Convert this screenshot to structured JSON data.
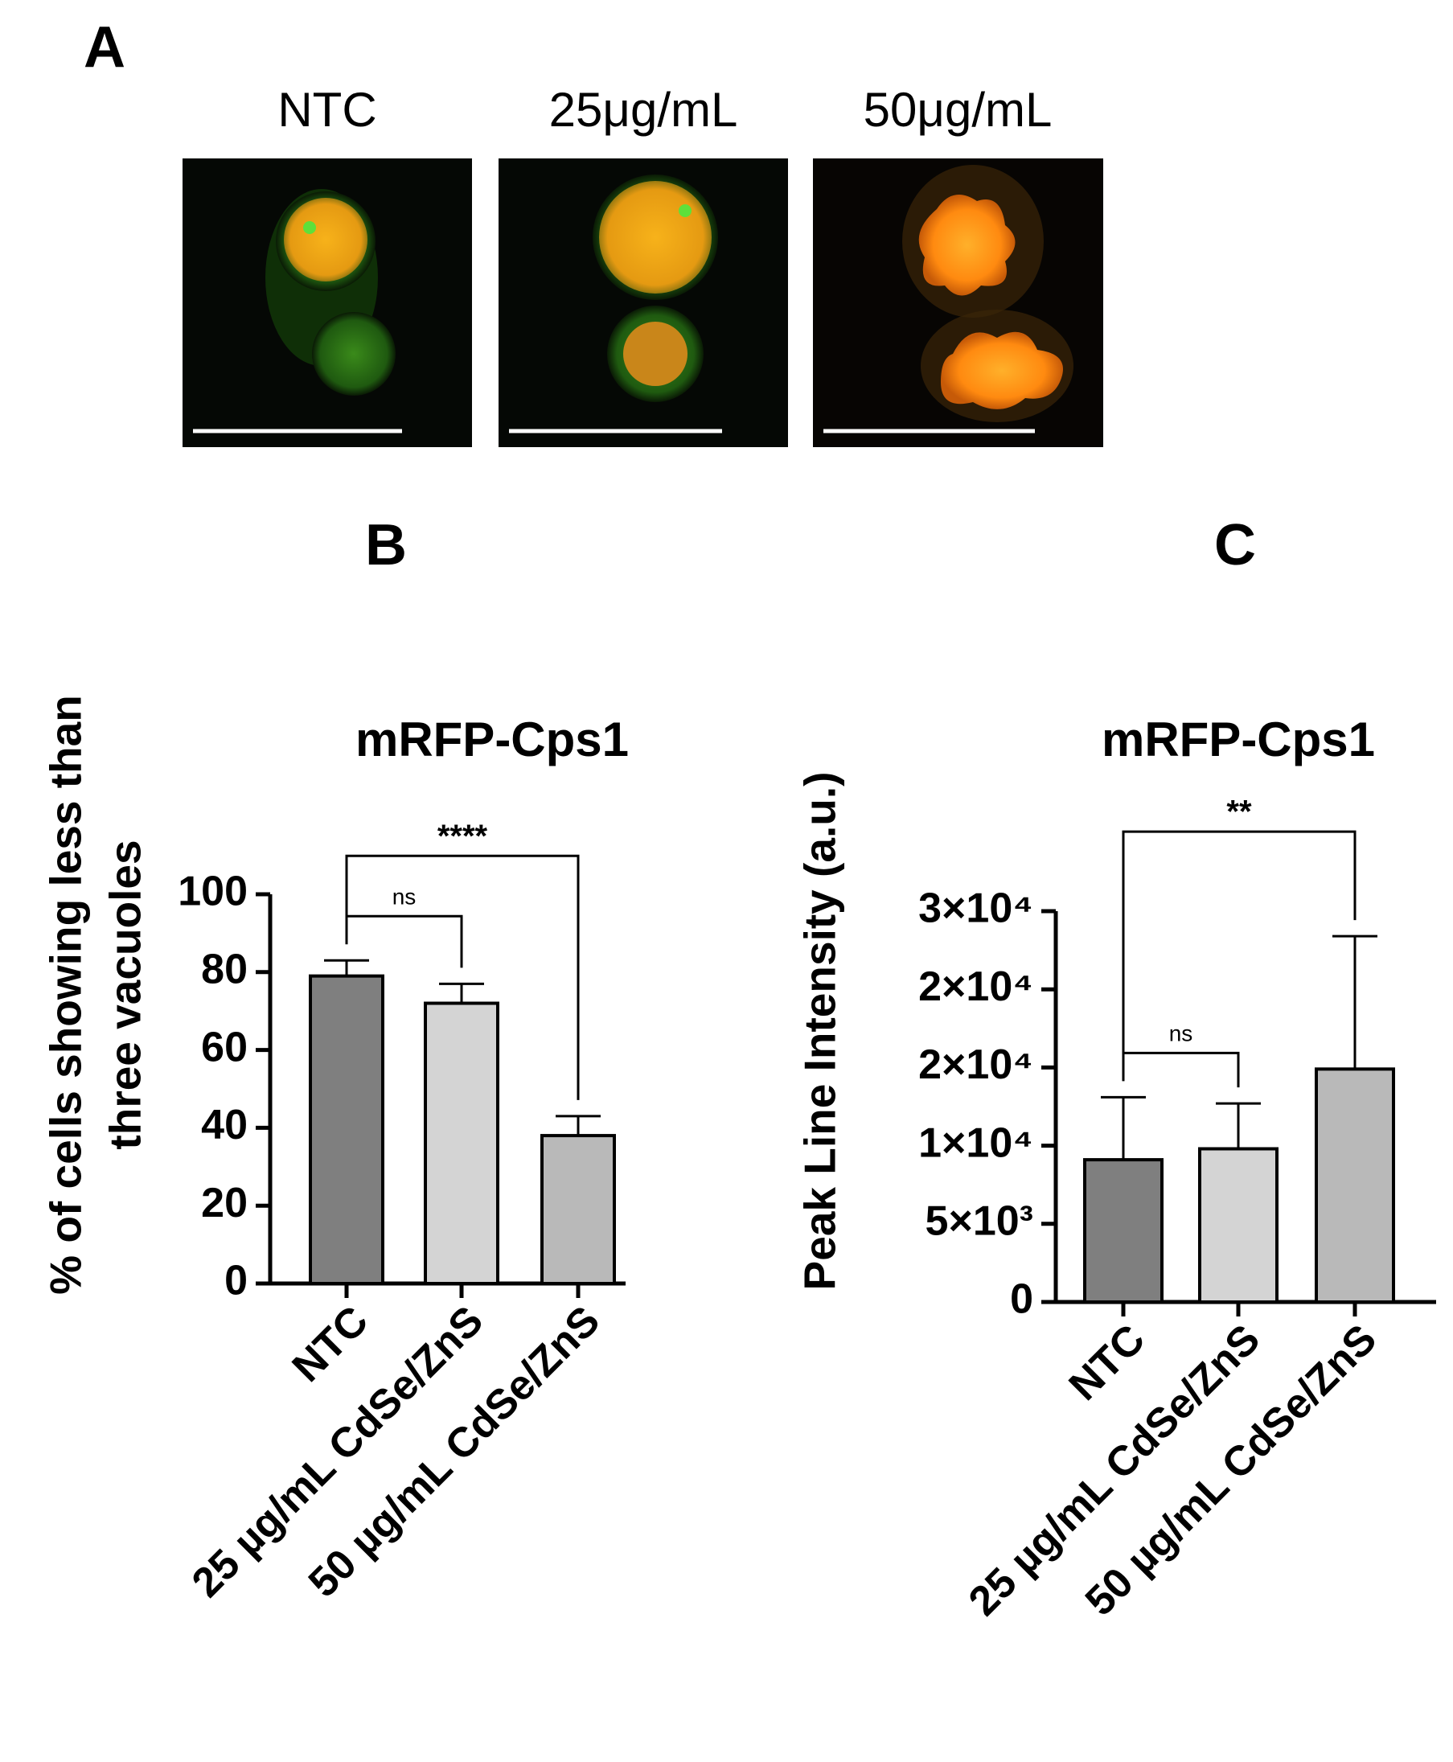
{
  "panel_a": {
    "label": "A",
    "images": [
      "NTC",
      "25μg/mL",
      "50μg/mL"
    ]
  },
  "chart_data": [
    {
      "type": "bar",
      "panel": "B",
      "title": "mRFP-Cps1",
      "y_label": [
        "% of cells showing less than",
        "three vacuoles"
      ],
      "categories": [
        "NTC",
        "25 µg/mL CdSe/ZnS",
        "50 µg/mL CdSe/ZnS"
      ],
      "values": [
        79,
        72,
        38
      ],
      "errors": [
        4,
        5,
        5
      ],
      "colors": [
        "#7f7f7f",
        "#d4d4d4",
        "#b9b9b9"
      ],
      "ylim": [
        0,
        100
      ],
      "yticks": [
        0,
        20,
        40,
        60,
        80,
        100
      ],
      "significance": [
        {
          "groups": [
            "NTC",
            "25 µg/mL CdSe/ZnS"
          ],
          "label": "ns"
        },
        {
          "groups": [
            "NTC",
            "50 µg/mL CdSe/ZnS"
          ],
          "label": "****"
        }
      ]
    },
    {
      "type": "bar",
      "panel": "C",
      "title": "mRFP-Cps1",
      "y_label": [
        "Peak Line Intensity (a.u.)"
      ],
      "categories": [
        "NTC",
        "25 µg/mL CdSe/ZnS",
        "50 µg/mL CdSe/ZnS"
      ],
      "values": [
        9100,
        9800,
        14900
      ],
      "errors": [
        4000,
        2900,
        8500
      ],
      "colors": [
        "#7f7f7f",
        "#d4d4d4",
        "#b9b9b9"
      ],
      "ylim": [
        0,
        25000
      ],
      "yticks": [
        0,
        {
          "value": 5000,
          "label": "5×10³"
        },
        {
          "value": 10000,
          "label": "1×10⁴"
        },
        {
          "value": 15000,
          "label": "2×10⁴"
        },
        {
          "value": 20000,
          "label": "2×10⁴"
        },
        {
          "value": 25000,
          "label": "3×10⁴"
        }
      ],
      "significance": [
        {
          "groups": [
            "NTC",
            "25 µg/mL CdSe/ZnS"
          ],
          "label": "ns"
        },
        {
          "groups": [
            "NTC",
            "50 µg/mL CdSe/ZnS"
          ],
          "label": "**"
        }
      ]
    }
  ]
}
